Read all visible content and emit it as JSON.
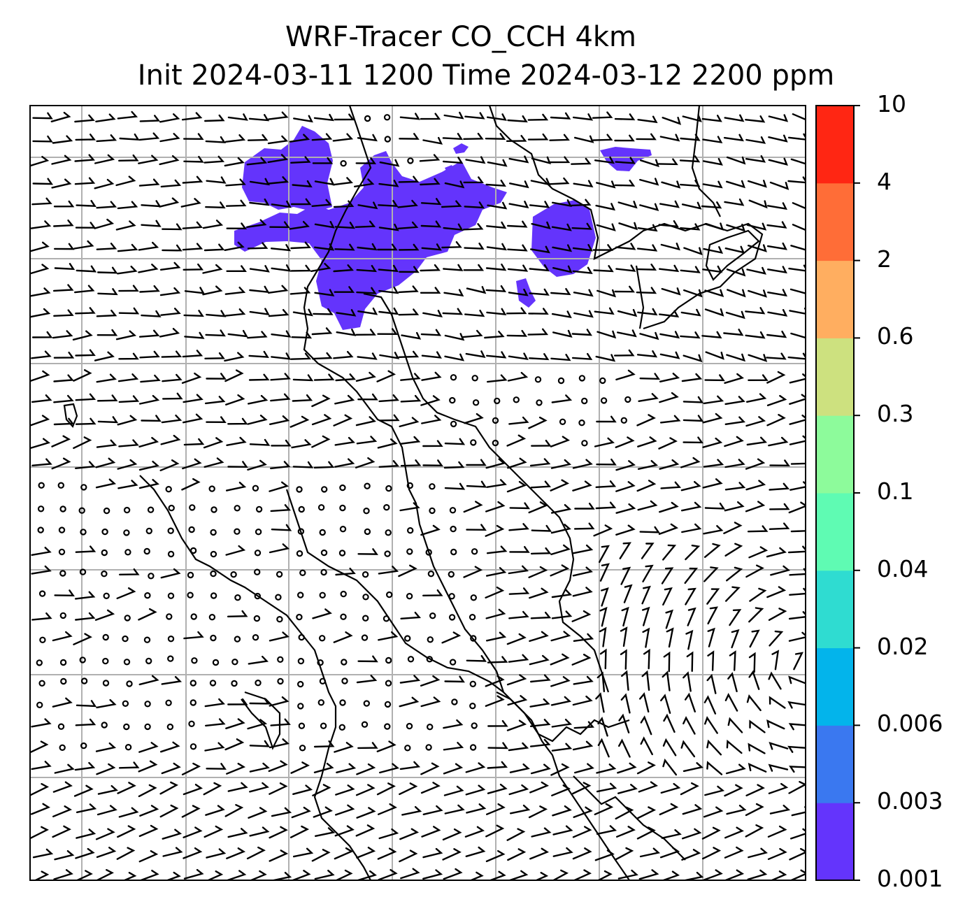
{
  "title": {
    "line1": "WRF-Tracer CO_CCH 4km",
    "line2": "Init 2024-03-11 1200 Time 2024-03-12 2200 ppm"
  },
  "colorbar": {
    "levels": [
      {
        "value": "0.001",
        "color": "#6434fc"
      },
      {
        "value": "0.003",
        "color": "#3a78f0"
      },
      {
        "value": "0.006",
        "color": "#03b4eb"
      },
      {
        "value": "0.02",
        "color": "#2fdcd1"
      },
      {
        "value": "0.04",
        "color": "#5ffbb3"
      },
      {
        "value": "0.1",
        "color": "#8dfb9b"
      },
      {
        "value": "0.3",
        "color": "#cde17f"
      },
      {
        "value": "0.6",
        "color": "#ffae60"
      },
      {
        "value": "2",
        "color": "#ff6d37"
      },
      {
        "value": "4",
        "color": "#ff2613"
      },
      {
        "value": "10",
        "color": null
      }
    ]
  },
  "map": {
    "tracer_fill_color": "#6434fc",
    "gridline_color": "#b0b0b0",
    "coastline_color": "#000000",
    "symbols": [
      "wind-barbs",
      "calm-wind-circles",
      "coastlines",
      "lat-lon-gridlines"
    ]
  }
}
